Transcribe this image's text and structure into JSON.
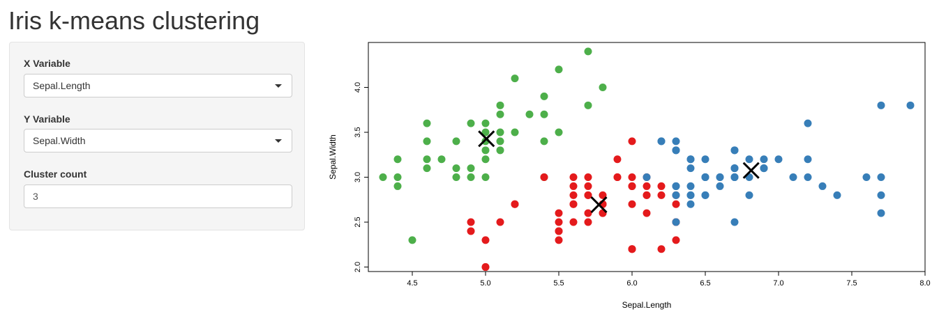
{
  "page": {
    "title": "Iris k-means clustering"
  },
  "controls": {
    "x_variable": {
      "label": "X Variable",
      "value": "Sepal.Length"
    },
    "y_variable": {
      "label": "Y Variable",
      "value": "Sepal.Width"
    },
    "cluster_count": {
      "label": "Cluster count",
      "value": "3"
    }
  },
  "chart_data": {
    "type": "scatter",
    "xlabel": "Sepal.Length",
    "ylabel": "Sepal.Width",
    "xlim": [
      4.2,
      8.0
    ],
    "ylim": [
      1.95,
      4.5
    ],
    "xticks": [
      "4.5",
      "5.0",
      "5.5",
      "6.0",
      "6.5",
      "7.0",
      "7.5",
      "8.0"
    ],
    "yticks": [
      "2.0",
      "2.5",
      "3.0",
      "3.5",
      "4.0"
    ],
    "grid": false,
    "series": [
      {
        "color": "#4DAF4A",
        "points": [
          [
            5.1,
            3.5
          ],
          [
            4.9,
            3.0
          ],
          [
            4.7,
            3.2
          ],
          [
            4.6,
            3.1
          ],
          [
            5.0,
            3.6
          ],
          [
            5.4,
            3.9
          ],
          [
            4.6,
            3.4
          ],
          [
            5.0,
            3.4
          ],
          [
            4.4,
            2.9
          ],
          [
            4.9,
            3.1
          ],
          [
            5.4,
            3.7
          ],
          [
            4.8,
            3.4
          ],
          [
            4.8,
            3.0
          ],
          [
            4.3,
            3.0
          ],
          [
            5.8,
            4.0
          ],
          [
            5.7,
            4.4
          ],
          [
            5.1,
            3.8
          ],
          [
            5.2,
            3.5
          ],
          [
            5.2,
            4.1
          ],
          [
            5.5,
            4.2
          ],
          [
            4.4,
            3.0
          ],
          [
            5.0,
            3.5
          ],
          [
            4.5,
            2.3
          ],
          [
            4.4,
            3.2
          ],
          [
            5.1,
            3.3
          ],
          [
            5.3,
            3.7
          ],
          [
            5.7,
            3.8
          ],
          [
            5.0,
            3.3
          ],
          [
            5.1,
            3.7
          ],
          [
            4.6,
            3.6
          ],
          [
            4.8,
            3.1
          ],
          [
            5.5,
            3.5
          ],
          [
            4.9,
            3.6
          ],
          [
            5.0,
            3.2
          ],
          [
            4.6,
            3.2
          ],
          [
            5.4,
            3.4
          ],
          [
            5.0,
            3.0
          ],
          [
            5.1,
            3.4
          ],
          [
            5.4,
            3.0
          ]
        ]
      },
      {
        "color": "#E41A1C",
        "points": [
          [
            5.5,
            2.3
          ],
          [
            4.9,
            2.4
          ],
          [
            5.2,
            2.7
          ],
          [
            5.0,
            2.0
          ],
          [
            5.9,
            3.0
          ],
          [
            6.0,
            2.2
          ],
          [
            6.1,
            2.9
          ],
          [
            5.6,
            2.9
          ],
          [
            5.6,
            3.0
          ],
          [
            5.8,
            2.7
          ],
          [
            6.2,
            2.2
          ],
          [
            5.6,
            2.5
          ],
          [
            5.9,
            3.2
          ],
          [
            6.1,
            2.8
          ],
          [
            5.7,
            2.6
          ],
          [
            5.5,
            2.4
          ],
          [
            5.5,
            2.5
          ],
          [
            5.8,
            2.7
          ],
          [
            6.0,
            2.7
          ],
          [
            5.4,
            3.0
          ],
          [
            6.0,
            3.4
          ],
          [
            5.6,
            2.8
          ],
          [
            5.5,
            2.6
          ],
          [
            6.1,
            3.0
          ],
          [
            5.8,
            2.6
          ],
          [
            5.0,
            2.3
          ],
          [
            5.6,
            2.7
          ],
          [
            5.7,
            3.0
          ],
          [
            5.7,
            2.9
          ],
          [
            6.2,
            2.9
          ],
          [
            5.1,
            2.5
          ],
          [
            5.7,
            2.8
          ],
          [
            4.9,
            2.5
          ],
          [
            6.3,
            2.3
          ],
          [
            6.3,
            2.5
          ],
          [
            5.8,
            2.8
          ],
          [
            6.0,
            2.2
          ],
          [
            6.1,
            2.6
          ],
          [
            6.3,
            2.8
          ],
          [
            6.2,
            2.8
          ],
          [
            6.3,
            2.7
          ],
          [
            5.7,
            2.5
          ],
          [
            6.0,
            2.9
          ],
          [
            6.1,
            2.8
          ],
          [
            5.5,
            2.4
          ],
          [
            6.0,
            3.0
          ],
          [
            5.9,
            3.0
          ],
          [
            5.8,
            2.6
          ],
          [
            5.2,
            2.7
          ],
          [
            5.6,
            2.7
          ],
          [
            5.7,
            2.8
          ],
          [
            6.3,
            2.5
          ],
          [
            5.0,
            2.0
          ],
          [
            6.0,
            2.2
          ],
          [
            5.8,
            2.7
          ],
          [
            6.0,
            2.9
          ]
        ]
      },
      {
        "color": "#377EB8",
        "points": [
          [
            7.0,
            3.2
          ],
          [
            6.4,
            3.2
          ],
          [
            6.9,
            3.1
          ],
          [
            6.5,
            2.8
          ],
          [
            6.3,
            3.3
          ],
          [
            6.6,
            2.9
          ],
          [
            6.7,
            3.1
          ],
          [
            6.2,
            3.4
          ],
          [
            6.3,
            2.9
          ],
          [
            6.4,
            2.9
          ],
          [
            6.6,
            3.0
          ],
          [
            6.8,
            2.8
          ],
          [
            6.7,
            3.0
          ],
          [
            6.7,
            3.1
          ],
          [
            6.3,
            2.8
          ],
          [
            6.5,
            3.0
          ],
          [
            6.4,
            2.7
          ],
          [
            7.7,
            3.8
          ],
          [
            7.7,
            2.6
          ],
          [
            6.9,
            3.2
          ],
          [
            7.7,
            2.8
          ],
          [
            6.7,
            3.3
          ],
          [
            7.2,
            3.2
          ],
          [
            6.4,
            2.8
          ],
          [
            7.2,
            3.0
          ],
          [
            7.4,
            2.8
          ],
          [
            7.9,
            3.8
          ],
          [
            7.7,
            3.0
          ],
          [
            6.3,
            3.4
          ],
          [
            6.4,
            3.1
          ],
          [
            6.9,
            3.1
          ],
          [
            6.7,
            3.1
          ],
          [
            6.9,
            3.1
          ],
          [
            6.8,
            3.2
          ],
          [
            6.7,
            3.3
          ],
          [
            6.7,
            3.0
          ],
          [
            6.5,
            3.0
          ],
          [
            6.5,
            3.2
          ],
          [
            6.8,
            3.0
          ],
          [
            7.1,
            3.0
          ],
          [
            7.6,
            3.0
          ],
          [
            7.3,
            2.9
          ],
          [
            7.2,
            3.6
          ],
          [
            6.7,
            2.5
          ],
          [
            6.4,
            3.2
          ],
          [
            6.2,
            3.4
          ],
          [
            6.5,
            3.0
          ],
          [
            6.6,
            3.0
          ],
          [
            6.3,
            2.5
          ],
          [
            6.4,
            2.8
          ],
          [
            6.1,
            3.0
          ],
          [
            6.3,
            3.3
          ],
          [
            6.3,
            2.9
          ],
          [
            6.5,
            2.8
          ],
          [
            6.7,
            3.0
          ]
        ]
      }
    ],
    "centers": [
      [
        5.006,
        3.428
      ],
      [
        5.774,
        2.694
      ],
      [
        6.813,
        3.075
      ]
    ]
  }
}
